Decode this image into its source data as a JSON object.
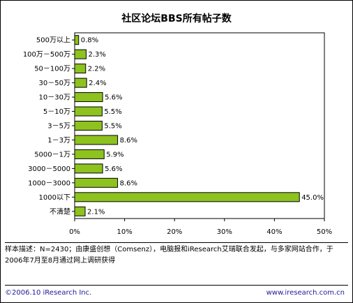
{
  "chart_data": {
    "type": "bar",
    "orientation": "horizontal",
    "title": "社区论坛BBS所有帖子数",
    "categories": [
      "500万以上",
      "100万－500万",
      "50－100万",
      "30－50万",
      "10－30万",
      "5－10万",
      "3－5万",
      "1－3万",
      "5000－1万",
      "3000－5000",
      "1000－3000",
      "1000以下",
      "不清楚"
    ],
    "values": [
      0.8,
      2.3,
      2.2,
      2.4,
      5.6,
      5.5,
      5.5,
      8.6,
      5.9,
      5.6,
      8.6,
      45.0,
      2.1
    ],
    "value_labels": [
      "0.8%",
      "2.3%",
      "2.2%",
      "2.4%",
      "5.6%",
      "5.5%",
      "5.5%",
      "8.6%",
      "5.9%",
      "5.6%",
      "8.6%",
      "45.0%",
      "2.1%"
    ],
    "xlim": [
      0,
      50
    ],
    "xticks": [
      0,
      10,
      20,
      30,
      40,
      50
    ],
    "xtick_labels": [
      "0%",
      "10%",
      "20%",
      "30%",
      "40%",
      "50%"
    ],
    "grid": false,
    "bar_color": "#8dc21f",
    "bar_edge_color": "#000000"
  },
  "note": "样本描述：N=2430；由康盛创想（Comsenz），电脑报和iResearch艾瑞联合发起，与多家网站合作，于2006年7月至8月通过网上调研获得",
  "footer": {
    "copyright": "©2006.10 iResearch Inc.",
    "website": "www.iresearch.com.cn"
  }
}
